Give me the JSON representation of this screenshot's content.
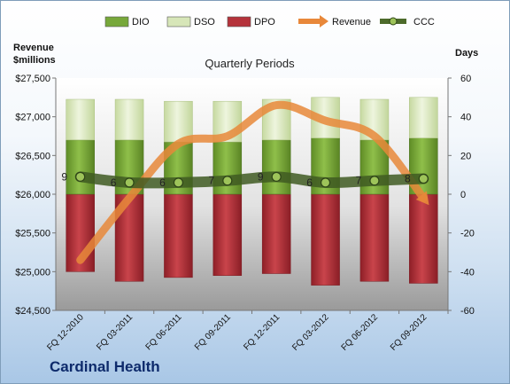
{
  "company": "Cardinal Health",
  "chart_data": {
    "type": "bar",
    "title": "Quarterly Periods",
    "ylabel_left": [
      "Revenue",
      "$millions"
    ],
    "ylabel_right": "Days",
    "categories": [
      "FQ 12-2010",
      "FQ 03-2011",
      "FQ 06-2011",
      "FQ 09-2011",
      "FQ 12-2011",
      "FQ 03-2012",
      "FQ 06-2012",
      "FQ 09-2012"
    ],
    "left_axis": {
      "min": 24500,
      "max": 27500,
      "step": 500,
      "ticks": [
        "$24,500",
        "$25,000",
        "$25,500",
        "$26,000",
        "$26,500",
        "$27,000",
        "$27,500"
      ]
    },
    "right_axis": {
      "min": -60,
      "max": 60,
      "step": 20,
      "ticks": [
        "-60",
        "-40",
        "-20",
        "0",
        "20",
        "40",
        "60"
      ]
    },
    "legend": {
      "position": "top",
      "items": [
        {
          "name": "DIO",
          "kind": "bar",
          "color": "#77a83a"
        },
        {
          "name": "DSO",
          "kind": "bar",
          "color": "#d7e6b8"
        },
        {
          "name": "DPO",
          "kind": "bar",
          "color": "#b5333b"
        },
        {
          "name": "Revenue",
          "kind": "line",
          "color": "#e8883a"
        },
        {
          "name": "CCC",
          "kind": "line",
          "color": "#4d6b2b"
        }
      ]
    },
    "series": [
      {
        "name": "DIO",
        "axis": "right",
        "values": [
          28,
          28,
          27,
          27,
          28,
          29,
          28,
          29
        ]
      },
      {
        "name": "DSO",
        "axis": "right",
        "values": [
          21,
          21,
          21,
          21,
          21,
          21,
          21,
          21
        ]
      },
      {
        "name": "DPO",
        "axis": "right",
        "values": [
          -40,
          -45,
          -43,
          -42,
          -41,
          -47,
          -45,
          -46
        ]
      },
      {
        "name": "Revenue",
        "axis": "left",
        "values": [
          25150,
          25950,
          26650,
          26750,
          27150,
          26950,
          26750,
          25950
        ]
      },
      {
        "name": "CCC",
        "axis": "right",
        "values": [
          9,
          6,
          6,
          7,
          9,
          6,
          7,
          8
        ],
        "labels": [
          "9",
          "6",
          "6",
          "7",
          "9",
          "6",
          "7",
          "8"
        ]
      }
    ],
    "grid": false
  }
}
